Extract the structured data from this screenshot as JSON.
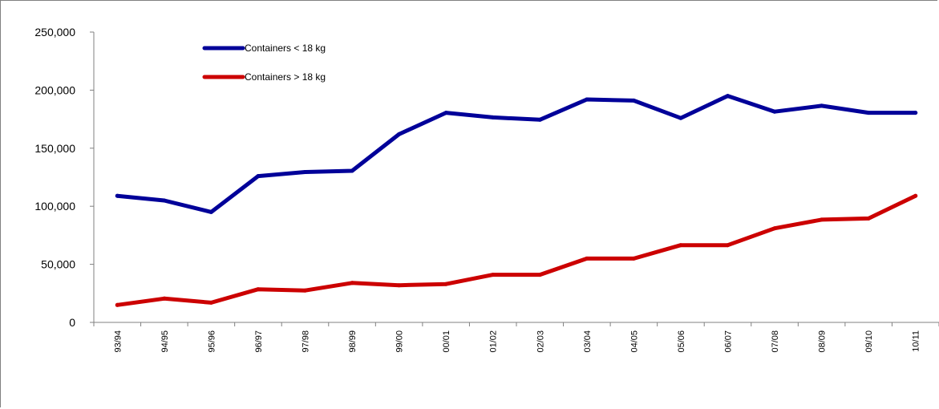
{
  "chart_data": {
    "type": "line",
    "title": "",
    "xlabel": "",
    "ylabel": "",
    "categories": [
      "93/94",
      "94/95",
      "95/96",
      "96/97",
      "97/98",
      "98/99",
      "99/00",
      "00/01",
      "01/02",
      "02/03",
      "03/04",
      "04/05",
      "05/06",
      "06/07",
      "07/08",
      "08/09",
      "09/10",
      "10/11"
    ],
    "ylim": [
      0,
      250000
    ],
    "yticks": [
      0,
      50000,
      100000,
      150000,
      200000,
      250000
    ],
    "ytick_labels": [
      "0",
      "50,000",
      "100,000",
      "150,000",
      "200,000",
      "250,000"
    ],
    "grid": false,
    "legend_position": "top-left",
    "series": [
      {
        "name": "Containers < 18 kg",
        "color": "#000099",
        "values": [
          109000,
          105000,
          95000,
          126000,
          129500,
          130500,
          162000,
          180500,
          176500,
          174500,
          192000,
          191000,
          176000,
          195000,
          181500,
          186500,
          180500,
          180500
        ]
      },
      {
        "name": "Containers > 18 kg",
        "color": "#cc0000",
        "values": [
          15000,
          20500,
          17000,
          28500,
          27500,
          34000,
          32000,
          33000,
          41000,
          41000,
          55000,
          55000,
          66500,
          66500,
          81000,
          88500,
          89500,
          109000
        ]
      }
    ]
  }
}
